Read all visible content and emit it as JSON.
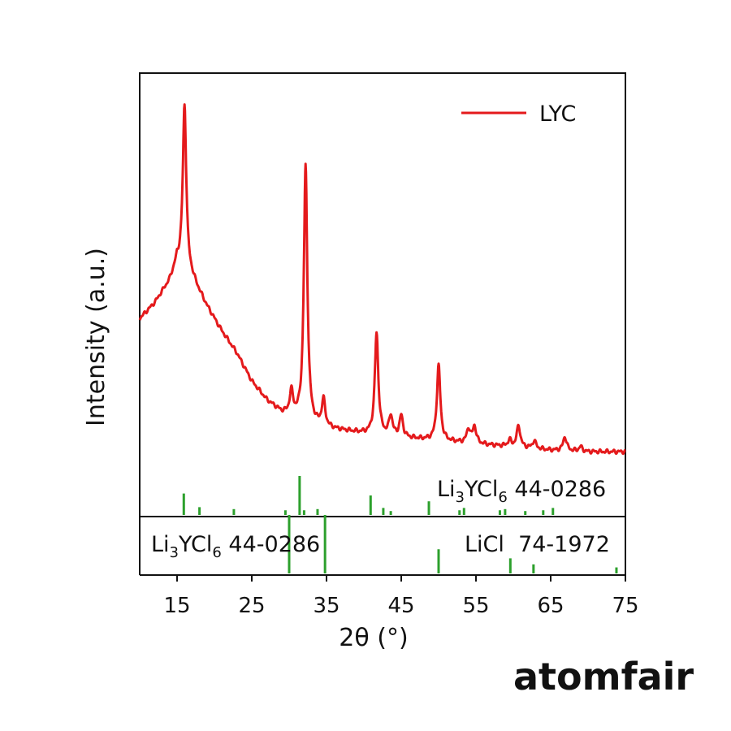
{
  "brand": "atomfair",
  "colors": {
    "pattern": "#e41a1c",
    "reference": "#2ca02c",
    "axis": "#111111"
  },
  "chart_data": {
    "type": "line",
    "xlabel": "2θ (°)",
    "ylabel": "Intensity (a.u.)",
    "xlim": [
      10,
      75
    ],
    "xticks": [
      15,
      25,
      35,
      45,
      55,
      65,
      75
    ],
    "legend": {
      "position": "top-right",
      "entries": [
        "LYC"
      ]
    },
    "series": [
      {
        "name": "LYC",
        "baseline": [
          [
            10,
            0.5
          ],
          [
            12,
            0.55
          ],
          [
            14,
            0.62
          ],
          [
            15,
            0.68
          ],
          [
            17,
            0.63
          ],
          [
            19,
            0.54
          ],
          [
            21,
            0.46
          ],
          [
            23,
            0.39
          ],
          [
            25,
            0.3
          ],
          [
            27,
            0.24
          ],
          [
            29,
            0.2
          ],
          [
            31,
            0.18
          ],
          [
            33,
            0.16
          ],
          [
            35,
            0.15
          ],
          [
            38,
            0.14
          ],
          [
            41,
            0.13
          ],
          [
            45,
            0.12
          ],
          [
            50,
            0.11
          ],
          [
            55,
            0.1
          ],
          [
            60,
            0.09
          ],
          [
            65,
            0.08
          ],
          [
            70,
            0.075
          ],
          [
            75,
            0.075
          ]
        ],
        "peaks": [
          {
            "x": 16.0,
            "height": 0.53
          },
          {
            "x": 30.3,
            "height": 0.075
          },
          {
            "x": 32.2,
            "height": 0.82
          },
          {
            "x": 34.6,
            "height": 0.085
          },
          {
            "x": 41.7,
            "height": 0.325
          },
          {
            "x": 43.6,
            "height": 0.065
          },
          {
            "x": 45.0,
            "height": 0.068
          },
          {
            "x": 50.0,
            "height": 0.24
          },
          {
            "x": 54.0,
            "height": 0.045
          },
          {
            "x": 54.8,
            "height": 0.055
          },
          {
            "x": 59.5,
            "height": 0.02
          },
          {
            "x": 60.7,
            "height": 0.07
          },
          {
            "x": 62.8,
            "height": 0.025
          },
          {
            "x": 66.9,
            "height": 0.045
          },
          {
            "x": 69.0,
            "height": 0.015
          }
        ]
      }
    ],
    "references": [
      {
        "label_main": "Li",
        "label_sub1": "3",
        "label_mid": "YCl",
        "label_sub2": "6",
        "label_tail": " 44-0286",
        "sticks": [
          [
            15.9,
            0.55
          ],
          [
            18.0,
            0.2
          ],
          [
            22.6,
            0.15
          ],
          [
            29.5,
            0.12
          ],
          [
            31.4,
            1.0
          ],
          [
            32.0,
            0.12
          ],
          [
            33.8,
            0.15
          ],
          [
            40.9,
            0.5
          ],
          [
            42.6,
            0.18
          ],
          [
            43.6,
            0.1
          ],
          [
            48.7,
            0.35
          ],
          [
            52.8,
            0.12
          ],
          [
            53.4,
            0.18
          ],
          [
            58.2,
            0.12
          ],
          [
            58.9,
            0.15
          ],
          [
            61.6,
            0.1
          ],
          [
            64.0,
            0.12
          ],
          [
            65.3,
            0.18
          ]
        ]
      },
      {
        "label_main": "Li",
        "label_sub1": "3",
        "label_mid": "YCl",
        "label_sub2": "6",
        "label_tail": " 44-0286",
        "sticks": [
          [
            30.0,
            1.0
          ],
          [
            34.8,
            1.0
          ]
        ]
      },
      {
        "label_text": "LiCl  74-1972",
        "sticks": [
          [
            50.0,
            0.48
          ],
          [
            59.6,
            0.3
          ],
          [
            62.7,
            0.18
          ],
          [
            73.8,
            0.12
          ]
        ]
      }
    ]
  }
}
